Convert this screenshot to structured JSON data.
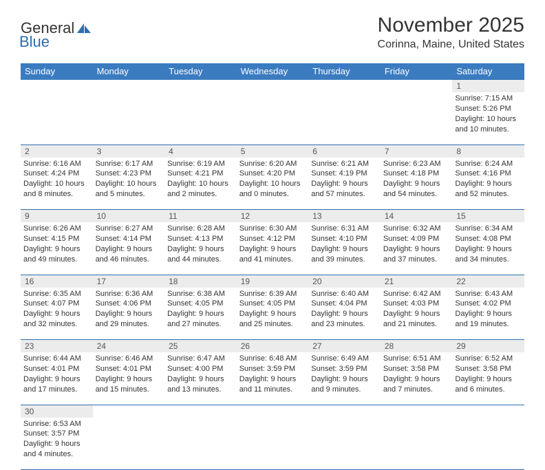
{
  "logo": {
    "general": "General",
    "blue": "Blue",
    "sail_color": "#2d6db0"
  },
  "title": "November 2025",
  "location": "Corinna, Maine, United States",
  "day_headers": [
    "Sunday",
    "Monday",
    "Tuesday",
    "Wednesday",
    "Thursday",
    "Friday",
    "Saturday"
  ],
  "header_bg": "#3b7bc0",
  "header_fg": "#ffffff",
  "daynum_bg": "#ececec",
  "border_color": "#2d6db0",
  "text_color": "#333333",
  "weeks": [
    [
      null,
      null,
      null,
      null,
      null,
      null,
      {
        "n": "1",
        "sr": "7:15 AM",
        "ss": "5:26 PM",
        "dl": "10 hours and 10 minutes."
      }
    ],
    [
      {
        "n": "2",
        "sr": "6:16 AM",
        "ss": "4:24 PM",
        "dl": "10 hours and 8 minutes."
      },
      {
        "n": "3",
        "sr": "6:17 AM",
        "ss": "4:23 PM",
        "dl": "10 hours and 5 minutes."
      },
      {
        "n": "4",
        "sr": "6:19 AM",
        "ss": "4:21 PM",
        "dl": "10 hours and 2 minutes."
      },
      {
        "n": "5",
        "sr": "6:20 AM",
        "ss": "4:20 PM",
        "dl": "10 hours and 0 minutes."
      },
      {
        "n": "6",
        "sr": "6:21 AM",
        "ss": "4:19 PM",
        "dl": "9 hours and 57 minutes."
      },
      {
        "n": "7",
        "sr": "6:23 AM",
        "ss": "4:18 PM",
        "dl": "9 hours and 54 minutes."
      },
      {
        "n": "8",
        "sr": "6:24 AM",
        "ss": "4:16 PM",
        "dl": "9 hours and 52 minutes."
      }
    ],
    [
      {
        "n": "9",
        "sr": "6:26 AM",
        "ss": "4:15 PM",
        "dl": "9 hours and 49 minutes."
      },
      {
        "n": "10",
        "sr": "6:27 AM",
        "ss": "4:14 PM",
        "dl": "9 hours and 46 minutes."
      },
      {
        "n": "11",
        "sr": "6:28 AM",
        "ss": "4:13 PM",
        "dl": "9 hours and 44 minutes."
      },
      {
        "n": "12",
        "sr": "6:30 AM",
        "ss": "4:12 PM",
        "dl": "9 hours and 41 minutes."
      },
      {
        "n": "13",
        "sr": "6:31 AM",
        "ss": "4:10 PM",
        "dl": "9 hours and 39 minutes."
      },
      {
        "n": "14",
        "sr": "6:32 AM",
        "ss": "4:09 PM",
        "dl": "9 hours and 37 minutes."
      },
      {
        "n": "15",
        "sr": "6:34 AM",
        "ss": "4:08 PM",
        "dl": "9 hours and 34 minutes."
      }
    ],
    [
      {
        "n": "16",
        "sr": "6:35 AM",
        "ss": "4:07 PM",
        "dl": "9 hours and 32 minutes."
      },
      {
        "n": "17",
        "sr": "6:36 AM",
        "ss": "4:06 PM",
        "dl": "9 hours and 29 minutes."
      },
      {
        "n": "18",
        "sr": "6:38 AM",
        "ss": "4:05 PM",
        "dl": "9 hours and 27 minutes."
      },
      {
        "n": "19",
        "sr": "6:39 AM",
        "ss": "4:05 PM",
        "dl": "9 hours and 25 minutes."
      },
      {
        "n": "20",
        "sr": "6:40 AM",
        "ss": "4:04 PM",
        "dl": "9 hours and 23 minutes."
      },
      {
        "n": "21",
        "sr": "6:42 AM",
        "ss": "4:03 PM",
        "dl": "9 hours and 21 minutes."
      },
      {
        "n": "22",
        "sr": "6:43 AM",
        "ss": "4:02 PM",
        "dl": "9 hours and 19 minutes."
      }
    ],
    [
      {
        "n": "23",
        "sr": "6:44 AM",
        "ss": "4:01 PM",
        "dl": "9 hours and 17 minutes."
      },
      {
        "n": "24",
        "sr": "6:46 AM",
        "ss": "4:01 PM",
        "dl": "9 hours and 15 minutes."
      },
      {
        "n": "25",
        "sr": "6:47 AM",
        "ss": "4:00 PM",
        "dl": "9 hours and 13 minutes."
      },
      {
        "n": "26",
        "sr": "6:48 AM",
        "ss": "3:59 PM",
        "dl": "9 hours and 11 minutes."
      },
      {
        "n": "27",
        "sr": "6:49 AM",
        "ss": "3:59 PM",
        "dl": "9 hours and 9 minutes."
      },
      {
        "n": "28",
        "sr": "6:51 AM",
        "ss": "3:58 PM",
        "dl": "9 hours and 7 minutes."
      },
      {
        "n": "29",
        "sr": "6:52 AM",
        "ss": "3:58 PM",
        "dl": "9 hours and 6 minutes."
      }
    ],
    [
      {
        "n": "30",
        "sr": "6:53 AM",
        "ss": "3:57 PM",
        "dl": "9 hours and 4 minutes."
      },
      null,
      null,
      null,
      null,
      null,
      null
    ]
  ],
  "labels": {
    "sunrise": "Sunrise:",
    "sunset": "Sunset:",
    "daylight": "Daylight:"
  }
}
